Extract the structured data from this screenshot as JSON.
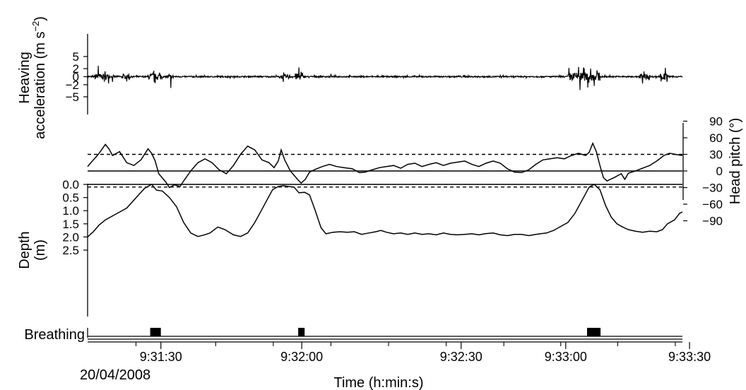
{
  "chart_data": [
    {
      "type": "line",
      "ylabel_line1": "Heaving",
      "ylabel_line2": "acceleration (m s",
      "ylabel_sup": "−2",
      "ylabel_end": ")",
      "ylim": [
        -6,
        6
      ],
      "yticks": [
        5,
        2,
        0,
        -2,
        -5
      ],
      "ytick_labels": [
        "5",
        "2",
        "0",
        "−2",
        "−5"
      ],
      "series": [
        {
          "points": []
        }
      ]
    },
    {
      "type": "line",
      "ylabel": "Head pitch (°)",
      "ylim": [
        -90,
        90
      ],
      "yticks": [
        90,
        60,
        30,
        0,
        -30,
        -60,
        -90
      ],
      "ytick_labels": [
        "90",
        "60",
        "30",
        "0",
        "−30",
        "−60",
        "−90"
      ],
      "reference_lines": [
        {
          "y": 30,
          "style": "dashed"
        },
        {
          "y": 0,
          "style": "solid"
        }
      ],
      "series": [
        {
          "points": [
            [
              0,
              8
            ],
            [
              15,
              30
            ],
            [
              25,
              48
            ],
            [
              30,
              40
            ],
            [
              35,
              28
            ],
            [
              45,
              35
            ],
            [
              55,
              15
            ],
            [
              65,
              10
            ],
            [
              75,
              20
            ],
            [
              85,
              40
            ],
            [
              90,
              32
            ],
            [
              95,
              18
            ],
            [
              100,
              -5
            ],
            [
              110,
              -20
            ],
            [
              115,
              -30
            ],
            [
              122,
              -25
            ],
            [
              130,
              -28
            ],
            [
              135,
              -18
            ],
            [
              145,
              0
            ],
            [
              155,
              15
            ],
            [
              165,
              22
            ],
            [
              175,
              15
            ],
            [
              185,
              2
            ],
            [
              195,
              -5
            ],
            [
              205,
              10
            ],
            [
              215,
              30
            ],
            [
              225,
              45
            ],
            [
              235,
              38
            ],
            [
              245,
              20
            ],
            [
              255,
              15
            ],
            [
              262,
              6
            ],
            [
              268,
              18
            ],
            [
              272,
              38
            ],
            [
              277,
              20
            ],
            [
              285,
              0
            ],
            [
              295,
              -15
            ],
            [
              300,
              -22
            ],
            [
              306,
              -15
            ],
            [
              312,
              -2
            ],
            [
              320,
              3
            ],
            [
              330,
              8
            ],
            [
              340,
              12
            ],
            [
              350,
              8
            ],
            [
              360,
              6
            ],
            [
              372,
              4
            ],
            [
              382,
              -3
            ],
            [
              390,
              -2
            ],
            [
              400,
              2
            ],
            [
              410,
              6
            ],
            [
              420,
              8
            ],
            [
              430,
              10
            ],
            [
              440,
              5
            ],
            [
              450,
              12
            ],
            [
              460,
              14
            ],
            [
              470,
              8
            ],
            [
              480,
              12
            ],
            [
              490,
              15
            ],
            [
              500,
              10
            ],
            [
              510,
              14
            ],
            [
              520,
              16
            ],
            [
              530,
              18
            ],
            [
              540,
              12
            ],
            [
              550,
              8
            ],
            [
              560,
              14
            ],
            [
              570,
              18
            ],
            [
              580,
              14
            ],
            [
              590,
              4
            ],
            [
              600,
              -2
            ],
            [
              610,
              -3
            ],
            [
              620,
              2
            ],
            [
              630,
              12
            ],
            [
              640,
              20
            ],
            [
              650,
              22
            ],
            [
              660,
              24
            ],
            [
              670,
              22
            ],
            [
              680,
              28
            ],
            [
              690,
              32
            ],
            [
              700,
              28
            ],
            [
              705,
              34
            ],
            [
              710,
              50
            ],
            [
              715,
              35
            ],
            [
              720,
              10
            ],
            [
              725,
              -12
            ],
            [
              730,
              -18
            ],
            [
              740,
              -12
            ],
            [
              750,
              -5
            ],
            [
              755,
              -15
            ],
            [
              760,
              -4
            ],
            [
              770,
              0
            ],
            [
              780,
              5
            ],
            [
              790,
              10
            ],
            [
              800,
              18
            ],
            [
              810,
              28
            ],
            [
              818,
              32
            ],
            [
              826,
              30
            ],
            [
              836,
              28
            ]
          ]
        }
      ]
    },
    {
      "type": "line",
      "ylabel_line1": "Depth",
      "ylabel_line2": "(m)",
      "ylim": [
        2.5,
        0.0
      ],
      "yticks": [
        0.0,
        0.5,
        1.0,
        1.5,
        2.0,
        2.5
      ],
      "ytick_labels": [
        "0.0",
        "0.5",
        "1.0",
        "1.5",
        "2.0",
        "2.5"
      ],
      "reference_lines": [
        {
          "y": 0.1,
          "style": "dashed"
        }
      ],
      "series": [
        {
          "points": [
            [
              0,
              2.0
            ],
            [
              8,
              1.8
            ],
            [
              16,
              1.55
            ],
            [
              25,
              1.35
            ],
            [
              35,
              1.2
            ],
            [
              45,
              1.05
            ],
            [
              55,
              0.9
            ],
            [
              65,
              0.6
            ],
            [
              80,
              0.15
            ],
            [
              90,
              0.0
            ],
            [
              97,
              0.22
            ],
            [
              105,
              0.25
            ],
            [
              115,
              0.5
            ],
            [
              125,
              0.85
            ],
            [
              135,
              1.45
            ],
            [
              145,
              1.85
            ],
            [
              155,
              1.98
            ],
            [
              163,
              1.93
            ],
            [
              172,
              1.85
            ],
            [
              183,
              1.62
            ],
            [
              193,
              1.72
            ],
            [
              205,
              1.92
            ],
            [
              215,
              1.98
            ],
            [
              225,
              1.85
            ],
            [
              235,
              1.45
            ],
            [
              245,
              0.95
            ],
            [
              252,
              0.6
            ],
            [
              260,
              0.2
            ],
            [
              268,
              0.08
            ],
            [
              275,
              0.05
            ],
            [
              283,
              0.08
            ],
            [
              290,
              0.1
            ],
            [
              297,
              0.32
            ],
            [
              305,
              0.3
            ],
            [
              312,
              0.4
            ],
            [
              320,
              1.0
            ],
            [
              328,
              1.65
            ],
            [
              335,
              1.88
            ],
            [
              345,
              1.82
            ],
            [
              355,
              1.8
            ],
            [
              365,
              1.82
            ],
            [
              375,
              1.8
            ],
            [
              385,
              1.9
            ],
            [
              395,
              1.85
            ],
            [
              405,
              1.8
            ],
            [
              412,
              1.75
            ],
            [
              420,
              1.82
            ],
            [
              430,
              1.88
            ],
            [
              440,
              1.85
            ],
            [
              450,
              1.9
            ],
            [
              460,
              1.85
            ],
            [
              470,
              1.9
            ],
            [
              480,
              1.88
            ],
            [
              490,
              1.92
            ],
            [
              500,
              1.85
            ],
            [
              510,
              1.9
            ],
            [
              520,
              1.92
            ],
            [
              530,
              1.9
            ],
            [
              540,
              1.88
            ],
            [
              550,
              1.92
            ],
            [
              560,
              1.87
            ],
            [
              570,
              1.85
            ],
            [
              580,
              1.92
            ],
            [
              590,
              1.95
            ],
            [
              600,
              1.9
            ],
            [
              610,
              1.9
            ],
            [
              620,
              1.95
            ],
            [
              630,
              1.9
            ],
            [
              645,
              1.85
            ],
            [
              655,
              1.75
            ],
            [
              665,
              1.6
            ],
            [
              675,
              1.45
            ],
            [
              685,
              1.1
            ],
            [
              695,
              0.6
            ],
            [
              705,
              0.1
            ],
            [
              712,
              0.0
            ],
            [
              720,
              0.2
            ],
            [
              728,
              0.8
            ],
            [
              736,
              1.25
            ],
            [
              744,
              1.5
            ],
            [
              752,
              1.62
            ],
            [
              760,
              1.72
            ],
            [
              770,
              1.78
            ],
            [
              780,
              1.82
            ],
            [
              790,
              1.78
            ],
            [
              800,
              1.8
            ],
            [
              808,
              1.72
            ],
            [
              815,
              1.5
            ],
            [
              825,
              1.35
            ],
            [
              832,
              1.1
            ],
            [
              836,
              1.05
            ]
          ]
        }
      ]
    },
    {
      "type": "bar",
      "ylabel": "Breathing",
      "events": [
        {
          "start": 88,
          "end": 103
        },
        {
          "start": 296,
          "end": 305
        },
        {
          "start": 702,
          "end": 721
        }
      ]
    }
  ],
  "xaxis": {
    "title": "Time (h:min:s)",
    "date": "20/04/2008",
    "tick_labels": [
      {
        "t": 103,
        "label": "9:31:30"
      },
      {
        "t": 301,
        "label": "9:32:00"
      },
      {
        "t": 525,
        "label": "9:32:30"
      },
      {
        "t": 672,
        "label": "9:33:00"
      },
      {
        "t": 846,
        "label": "9:33:30"
      }
    ]
  }
}
